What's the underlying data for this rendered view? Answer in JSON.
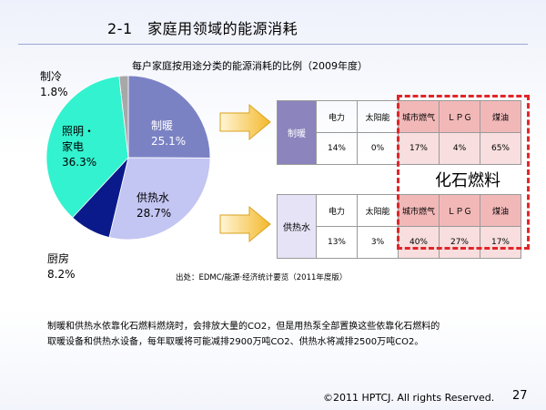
{
  "slide": {
    "title": "2-1　家庭用领域的能源消耗",
    "chart_title": "每户家庭按用途分类的能源消耗的比例（2009年度）",
    "source": "出处：EDMC/能源·经济统计要览（2011年度版）",
    "body_line1": "制暖和供热水依靠化石燃料燃烧时，会排放大量的CO2，但是用热泵全部置换这些依靠化石燃料的",
    "body_line2": "取暖设备和供热水设备，每年取暖将可能减排2900万吨CO2、供热水将减排2500万吨CO2。",
    "footer": "©2011 HPTCJ. All rights Reserved.",
    "page_number": "27",
    "fossil_label": "化石燃料"
  },
  "chart_data": [
    {
      "type": "pie",
      "title": "每户家庭按用途分类的能源消耗的比例（2009年度）",
      "slices": [
        {
          "name": "制暖",
          "value": 25.1,
          "label": "25.1%",
          "color": "#7b82c4"
        },
        {
          "name": "供热水",
          "value": 28.7,
          "label": "28.7%",
          "color": "#c3c5f2"
        },
        {
          "name": "厨房",
          "value": 8.2,
          "label": "8.2%",
          "color": "#0b1a8a"
        },
        {
          "name": "照明・家电",
          "value": 36.3,
          "label": "36.3%",
          "color": "#33f2cf"
        },
        {
          "name": "制冷",
          "value": 1.8,
          "label": "1.8%",
          "color": "#a8a8a8"
        }
      ]
    },
    {
      "type": "table",
      "rows": [
        {
          "label": "制暖",
          "label_color": "#8c84bd"
        },
        {
          "label": "供热水",
          "label_color": "#e6e3f6"
        }
      ],
      "columns": [
        "电力",
        "太阳能",
        "城市燃气",
        "ＬＰＧ",
        "煤油"
      ],
      "heating": [
        "14%",
        "0%",
        "17%",
        "4%",
        "65%"
      ],
      "hot_water": [
        "13%",
        "3%",
        "40%",
        "27%",
        "17%"
      ]
    }
  ],
  "pie_labels": {
    "heating_name": "制暖",
    "heating_value": "25.1%",
    "hotwater_name": "供热水",
    "hotwater_value": "28.7%",
    "kitchen_name": "厨房",
    "kitchen_value": "8.2%",
    "lighting_name1": "照明・",
    "lighting_name2": "家电",
    "lighting_value": "36.3%",
    "cooling_name": "制冷",
    "cooling_value": "1.8%"
  },
  "colors": {
    "arrow": "#f7c64a",
    "fossil_border": "#e0262a",
    "fossil_fill": "#f8dede"
  }
}
